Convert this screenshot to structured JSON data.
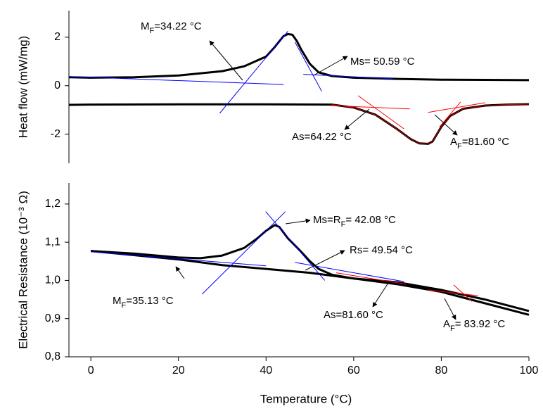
{
  "chart_data": [
    {
      "type": "line",
      "ylabel": "Heat flow (mW/mg)",
      "xlim": [
        -5,
        100
      ],
      "ylim": [
        -3.2,
        3.1
      ],
      "yticks": [
        -2,
        0,
        2
      ],
      "series": [
        {
          "color": "#000000",
          "x": [
            -5,
            0,
            10,
            20,
            30,
            35,
            40,
            42,
            44,
            45,
            46,
            47,
            48,
            50,
            52,
            55,
            60,
            70,
            80,
            90,
            100
          ],
          "values": [
            0.35,
            0.33,
            0.35,
            0.42,
            0.6,
            0.8,
            1.2,
            1.6,
            2.05,
            2.13,
            2.1,
            1.85,
            1.5,
            0.9,
            0.55,
            0.4,
            0.33,
            0.28,
            0.25,
            0.24,
            0.23
          ]
        },
        {
          "color": "#000000",
          "x": [
            -5,
            0,
            20,
            40,
            55,
            60,
            65,
            70,
            73,
            75,
            77,
            78,
            80,
            82,
            85,
            90,
            95,
            100
          ],
          "values": [
            -0.79,
            -0.78,
            -0.77,
            -0.77,
            -0.78,
            -0.9,
            -1.2,
            -1.8,
            -2.2,
            -2.38,
            -2.4,
            -2.3,
            -1.7,
            -1.25,
            -0.95,
            -0.82,
            -0.78,
            -0.76
          ]
        },
        {
          "color": "#cc0000",
          "x": [
            55,
            60,
            65,
            70,
            73,
            75,
            77,
            78,
            80,
            82,
            85,
            90,
            95,
            100
          ],
          "values": [
            -0.78,
            -0.9,
            -1.2,
            -1.8,
            -2.2,
            -2.38,
            -2.4,
            -2.3,
            -1.7,
            -1.25,
            -0.95,
            -0.82,
            -0.78,
            -0.76
          ]
        },
        {
          "color": "#0000ff",
          "x": [
            -5,
            44
          ],
          "values": [
            0.38,
            0.05
          ]
        },
        {
          "color": "#0000ff",
          "x": [
            29.4,
            45
          ],
          "values": [
            -1.14,
            2.25
          ]
        },
        {
          "color": "#0000ff",
          "x": [
            46.6,
            52.7
          ],
          "values": [
            1.8,
            -0.23
          ]
        },
        {
          "color": "#0000ff",
          "x": [
            48.5,
            69
          ],
          "values": [
            0.47,
            0.29
          ]
        },
        {
          "color": "#ff0000",
          "x": [
            54.7,
            72.8
          ],
          "values": [
            -0.82,
            -0.96
          ]
        },
        {
          "color": "#ff0000",
          "x": [
            61,
            71.5
          ],
          "values": [
            -0.41,
            -1.78
          ]
        },
        {
          "color": "#ff0000",
          "x": [
            77,
            90
          ],
          "values": [
            -1.1,
            -0.7
          ]
        },
        {
          "color": "#ff0000",
          "x": [
            79.6,
            84.4
          ],
          "values": [
            -1.7,
            -0.67
          ]
        }
      ],
      "annotations": [
        {
          "parts": [
            "M",
            "F",
            "=34.22 °C"
          ]
        },
        {
          "parts": [
            "Ms= 50.59 °C"
          ]
        },
        {
          "parts": [
            "As=64.22 °C"
          ]
        },
        {
          "parts": [
            "A",
            "F",
            "=81.60 °C"
          ]
        }
      ]
    },
    {
      "type": "line",
      "ylabel": "Electrical Resistance (10⁻³ Ω)",
      "xlabel": "Temperature (°C)",
      "xlim": [
        -5,
        100
      ],
      "xticks": [
        0,
        20,
        40,
        60,
        80,
        100
      ],
      "ylim": [
        0.8,
        1.255
      ],
      "yticks": [
        {
          "value": 0.8,
          "label": "0,8"
        },
        {
          "value": 0.9,
          "label": "0,9"
        },
        {
          "value": 1.0,
          "label": "1,0"
        },
        {
          "value": 1.1,
          "label": "1,1"
        },
        {
          "value": 1.2,
          "label": "1,2"
        }
      ],
      "series": [
        {
          "color": "#000000",
          "x": [
            0,
            10,
            20,
            30,
            40,
            50,
            60,
            70,
            80,
            90,
            100
          ],
          "values": [
            1.077,
            1.066,
            1.055,
            1.04,
            1.03,
            1.02,
            1.005,
            0.99,
            0.97,
            0.94,
            0.91
          ]
        },
        {
          "color": "#000000",
          "x": [
            0,
            10,
            20,
            25,
            30,
            35,
            38,
            40,
            42,
            43,
            45,
            48,
            50,
            52,
            55,
            60,
            70,
            80,
            90,
            100
          ],
          "values": [
            1.077,
            1.07,
            1.06,
            1.058,
            1.065,
            1.085,
            1.11,
            1.13,
            1.145,
            1.14,
            1.11,
            1.075,
            1.05,
            1.03,
            1.015,
            1.005,
            0.995,
            0.975,
            0.95,
            0.92
          ]
        },
        {
          "color": "#0000ff",
          "x": [
            0,
            40
          ],
          "values": [
            1.075,
            1.038
          ]
        },
        {
          "color": "#0000ff",
          "x": [
            25.4,
            44.4
          ],
          "values": [
            0.964,
            1.18
          ]
        },
        {
          "color": "#0000ff",
          "x": [
            39.9,
            53.4
          ],
          "values": [
            1.18,
            1.0
          ]
        },
        {
          "color": "#0000ff",
          "x": [
            46.6,
            71.5
          ],
          "values": [
            1.047,
            0.997
          ]
        },
        {
          "color": "#ff0000",
          "x": [
            56,
            72
          ],
          "values": [
            1.02,
            0.99
          ]
        },
        {
          "color": "#ff0000",
          "x": [
            77,
            88.4
          ],
          "values": [
            0.975,
            0.96
          ]
        },
        {
          "color": "#ff0000",
          "x": [
            82.8,
            87
          ],
          "values": [
            0.988,
            0.945
          ]
        }
      ],
      "annotations": [
        {
          "parts": [
            "Ms=R",
            "F",
            "= 42.08 °C"
          ]
        },
        {
          "parts": [
            "Rs= 49.54 °C"
          ]
        },
        {
          "parts": [
            "M",
            "F",
            "=35.13 °C"
          ]
        },
        {
          "parts": [
            "As=81.60 °C"
          ]
        },
        {
          "parts": [
            "A",
            "F",
            "= 83.92 °C"
          ]
        }
      ]
    }
  ]
}
